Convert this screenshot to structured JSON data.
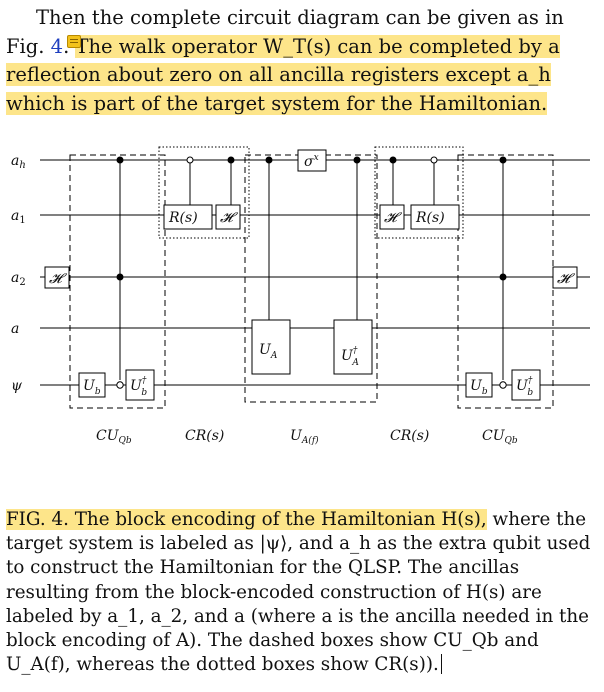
{
  "paragraph_top": {
    "lead": "Then the complete circuit diagram can be given as in Fig. ",
    "fig_ref": "4",
    "lead_end": ". ",
    "highlighted": "The walk operator W_T(s) can be completed by a reflection about zero on all ancilla registers except a_h which is part of the target system for the Hamiltonian."
  },
  "circuit": {
    "wire_labels": [
      "a_h",
      "a_1",
      "a_2",
      "a",
      "ψ"
    ],
    "gates": {
      "hadamard": "𝓗",
      "rotation": "R(s)",
      "ub": "U_b",
      "ub_dag": "U_b†",
      "ua": "U_A",
      "ua_dag": "U_A†",
      "sigma_x": "σ^x"
    },
    "block_labels": [
      "CU_Qb",
      "CR(s)",
      "U_A(f)",
      "CR(s)",
      "CU_Qb"
    ]
  },
  "caption": {
    "highlighted": "FIG. 4. The block encoding of the Hamiltonian H(s),",
    "body": " where the target system is labeled as |ψ⟩, and a_h as the extra qubit used to construct the Hamiltonian for the QLSP. The ancillas resulting from the block-encoded construction of H(s) are labeled by a_1, a_2, and a (where a is the ancilla needed in the block encoding of A). The dashed boxes show CU_Qb and U_A(f), whereas the dotted boxes show CR(s))."
  },
  "colors": {
    "highlight": "#fde58a",
    "link": "#1f3fbf",
    "note_icon": "#f3c21c"
  }
}
